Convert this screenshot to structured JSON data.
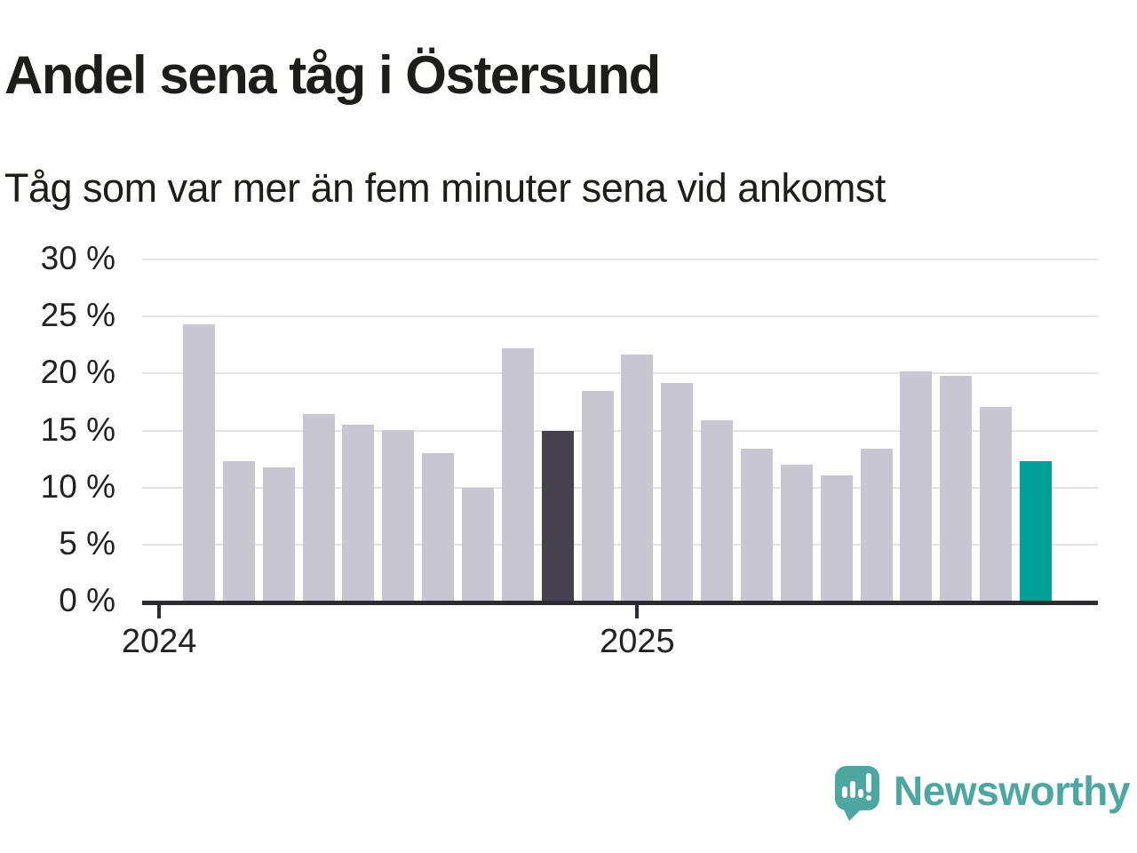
{
  "header": {
    "title": "Andel sena tåg i Östersund",
    "subtitle": "Tåg som var mer än fem minuter sena vid ankomst"
  },
  "chart_data": {
    "type": "bar",
    "title": "Andel sena tåg i Östersund",
    "subtitle": "Tåg som var mer än fem minuter sena vid ankomst",
    "unit": "%",
    "categories": [
      "2024-02",
      "2024-03",
      "2024-04",
      "2024-05",
      "2024-06",
      "2024-07",
      "2024-08",
      "2024-09",
      "2024-10",
      "2024-11",
      "2024-12",
      "2025-01",
      "2025-02",
      "2025-03",
      "2025-04",
      "2025-05",
      "2025-06",
      "2025-07",
      "2025-08",
      "2025-09",
      "2025-10",
      "2025-11"
    ],
    "values": [
      24.2,
      12.2,
      11.7,
      16.4,
      15.4,
      15.0,
      12.9,
      9.9,
      22.1,
      14.9,
      18.4,
      21.6,
      19.1,
      15.8,
      13.3,
      11.9,
      11.0,
      13.3,
      20.1,
      19.7,
      17.0,
      12.2
    ],
    "highlight_indices": {
      "dark": 9,
      "teal": 21
    },
    "ylim": [
      0,
      30
    ],
    "y_ticks": [
      0,
      5,
      10,
      15,
      20,
      25,
      30
    ],
    "y_tick_suffix": " %",
    "x_ticks": [
      {
        "label": "2024",
        "slot": -1
      },
      {
        "label": "2025",
        "slot": 11
      }
    ],
    "grid": "horizontal",
    "legend": "none"
  },
  "colors": {
    "bar_default": "#c8c6d0",
    "bar_highlight_dark": "#45424e",
    "bar_highlight_teal": "#00a099",
    "gridline": "#e4e3e7",
    "axis": "#2c2b31",
    "text": "#222222",
    "title_text": "#1d1d1b",
    "brand_teal": "#4ca7a0"
  },
  "footer": {
    "brand": "Newsworthy"
  }
}
